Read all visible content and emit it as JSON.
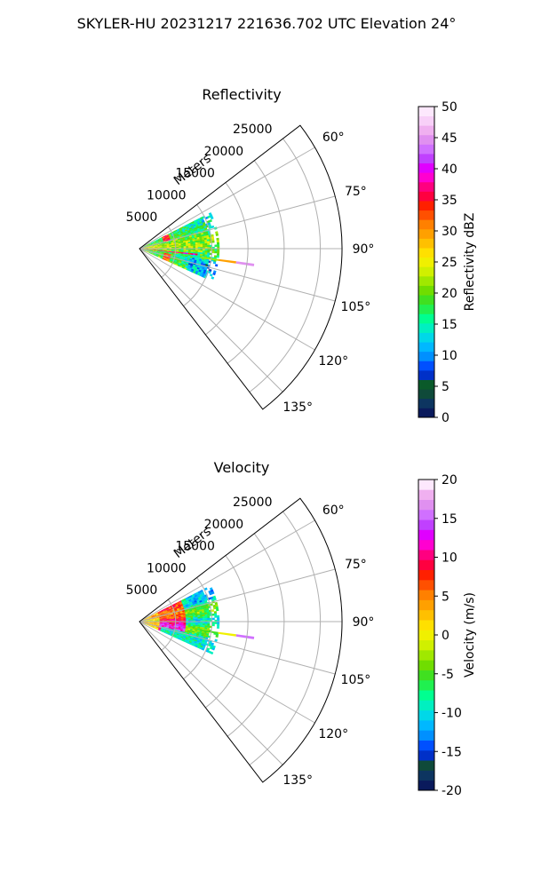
{
  "figure": {
    "suptitle": "SKYLER-HU  20231217  221636.702 UTC Elevation 24°"
  },
  "chart_data": [
    {
      "type": "heatmap",
      "projection": "polar-sector",
      "title": "Reflectivity",
      "range_label": "Meters",
      "range_ticks": [
        5000,
        10000,
        15000,
        20000,
        25000
      ],
      "range_max": 28000,
      "azimuth_ticks": [
        "60°",
        "75°",
        "90°",
        "105°",
        "120°",
        "135°"
      ],
      "azimuth_tick_values": [
        60,
        75,
        90,
        105,
        120,
        135
      ],
      "azimuth_range": [
        52.5,
        142.5
      ],
      "grid": true,
      "colorbar": {
        "label": "Reflectivity dBZ",
        "min": 0,
        "max": 50,
        "ticks": [
          0,
          5,
          10,
          15,
          20,
          25,
          30,
          35,
          40,
          45,
          50
        ],
        "colors": [
          "#0a1a5c",
          "#0d3560",
          "#0f4a3a",
          "#0a5a2a",
          "#0030c8",
          "#0050ff",
          "#0090ff",
          "#00b8ff",
          "#00d8e8",
          "#00f0c0",
          "#00ff90",
          "#20f050",
          "#40e020",
          "#70dd00",
          "#a0e800",
          "#d0f000",
          "#f0f000",
          "#ffe000",
          "#ffc000",
          "#ffa000",
          "#ff8000",
          "#ff5000",
          "#ff2000",
          "#ff0040",
          "#ff0080",
          "#ff00d0",
          "#e000ff",
          "#c040ff",
          "#d070ff",
          "#e090f0",
          "#f0b0f0",
          "#f8d0f8",
          "#fde8fd"
        ]
      },
      "data_extent": {
        "azimuth": [
          63,
          113
        ],
        "range": [
          0,
          11000
        ]
      },
      "clutter_spike": {
        "azimuth": 98,
        "range": [
          8500,
          16000
        ],
        "values_dBZ": [
          22,
          30,
          45
        ]
      },
      "annotations": [
        "radial band ~35 dBZ near 4000 m",
        "bulk of echoes 15–30 dBZ"
      ]
    },
    {
      "type": "heatmap",
      "projection": "polar-sector",
      "title": "Velocity",
      "range_label": "Meters",
      "range_ticks": [
        5000,
        10000,
        15000,
        20000,
        25000
      ],
      "range_max": 28000,
      "azimuth_ticks": [
        "60°",
        "75°",
        "90°",
        "105°",
        "120°",
        "135°"
      ],
      "azimuth_tick_values": [
        60,
        75,
        90,
        105,
        120,
        135
      ],
      "azimuth_range": [
        52.5,
        142.5
      ],
      "grid": true,
      "colorbar": {
        "label": "Velocity (m/s)",
        "min": -20,
        "max": 20,
        "ticks": [
          -20,
          -15,
          -10,
          -5,
          0,
          5,
          10,
          15,
          20
        ],
        "colors": [
          "#0a1a5c",
          "#0d3560",
          "#0f4a3a",
          "#0030c8",
          "#0050ff",
          "#0090ff",
          "#00b8ff",
          "#00d8e8",
          "#00f0c0",
          "#00ff90",
          "#20f050",
          "#40e020",
          "#70dd00",
          "#a0e800",
          "#d0f000",
          "#f0f000",
          "#ffe000",
          "#ffc000",
          "#ffa000",
          "#ff8000",
          "#ff5000",
          "#ff2000",
          "#ff0040",
          "#ff0080",
          "#ff00d0",
          "#e000ff",
          "#c040ff",
          "#d070ff",
          "#e090f0",
          "#f0b0f0",
          "#fde8fd"
        ]
      },
      "data_extent": {
        "azimuth": [
          63,
          113
        ],
        "range": [
          0,
          11000
        ]
      },
      "clutter_spike": {
        "azimuth": 98,
        "range": [
          8500,
          16000
        ],
        "values_ms": [
          -5,
          0,
          15
        ]
      },
      "annotations": [
        "positive (red/magenta) band near 5000 m",
        "negative (cyan) values at outer edge"
      ]
    }
  ]
}
